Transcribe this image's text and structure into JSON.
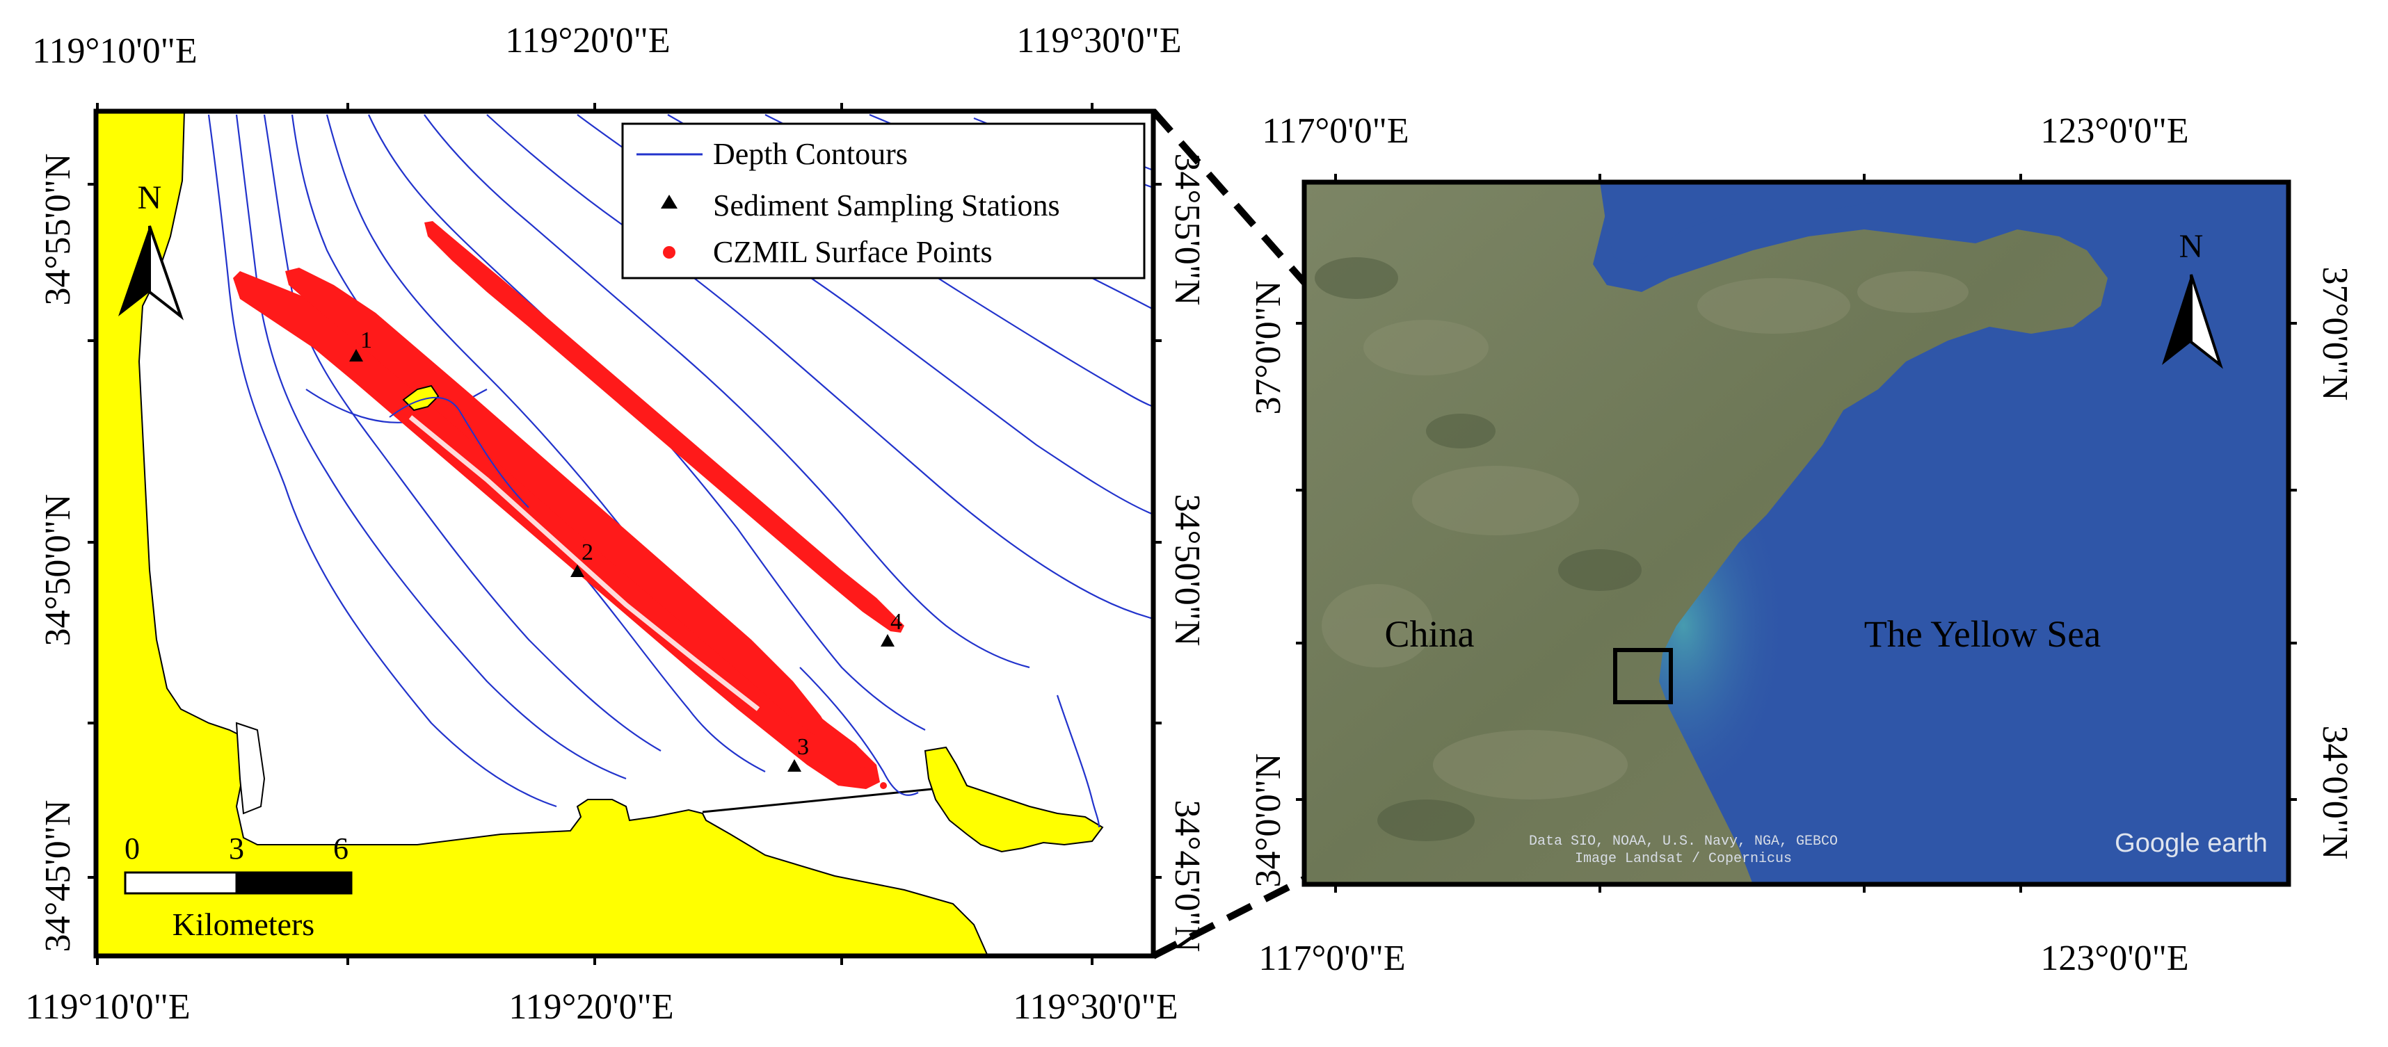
{
  "left_map": {
    "top_axis_labels": [
      "119°10'0\"E",
      "119°20'0\"E",
      "119°30'0\"E"
    ],
    "bottom_axis_labels": [
      "119°10'0\"E",
      "119°20'0\"E",
      "119°30'0\"E"
    ],
    "left_axis_labels": [
      "34°55'0\"N",
      "34°50'0\"N",
      "34°45'0\"N"
    ],
    "right_axis_labels": [
      "34°55'0\"N",
      "34°50'0\"N",
      "34°45'0\"N"
    ],
    "legend": {
      "items": [
        {
          "label": "Depth Contours",
          "symbol": "line",
          "color": "#2233cc"
        },
        {
          "label": "Sediment Sampling Stations",
          "symbol": "triangle",
          "color": "#000000"
        },
        {
          "label": "CZMIL Surface Points",
          "symbol": "dot",
          "color": "#ff1a1a"
        }
      ]
    },
    "north_arrow": {
      "label": "N",
      "icon": "north-arrow-icon"
    },
    "scale_bar": {
      "ticks": [
        "0",
        "3",
        "6"
      ],
      "unit": "Kilometers"
    },
    "stations": [
      "1",
      "2",
      "3",
      "4"
    ],
    "colors": {
      "land": "#ffff00",
      "sea": "#ffffff",
      "contour": "#2233cc",
      "czmil": "#ff1a1a",
      "island": "#ffff00"
    }
  },
  "right_map": {
    "top_axis_labels": [
      "117°0'0\"E",
      "123°0'0\"E"
    ],
    "bottom_axis_labels": [
      "117°0'0\"E",
      "123°0'0\"E"
    ],
    "left_axis_labels": [
      "37°0'0\"N",
      "34°0'0\"N"
    ],
    "right_axis_labels": [
      "37°0'0\"N",
      "34°0'0\"N"
    ],
    "place_labels": {
      "land": "China",
      "sea": "The Yellow Sea"
    },
    "north_arrow": {
      "label": "N",
      "icon": "north-arrow-icon"
    },
    "attribution": [
      "Data SIO, NOAA, U.S. Navy, NGA, GEBCO",
      "Image Landsat / Copernicus"
    ],
    "brand": "Google earth",
    "colors": {
      "sea": "#2f56a8",
      "land": "#6f7a5a"
    }
  }
}
